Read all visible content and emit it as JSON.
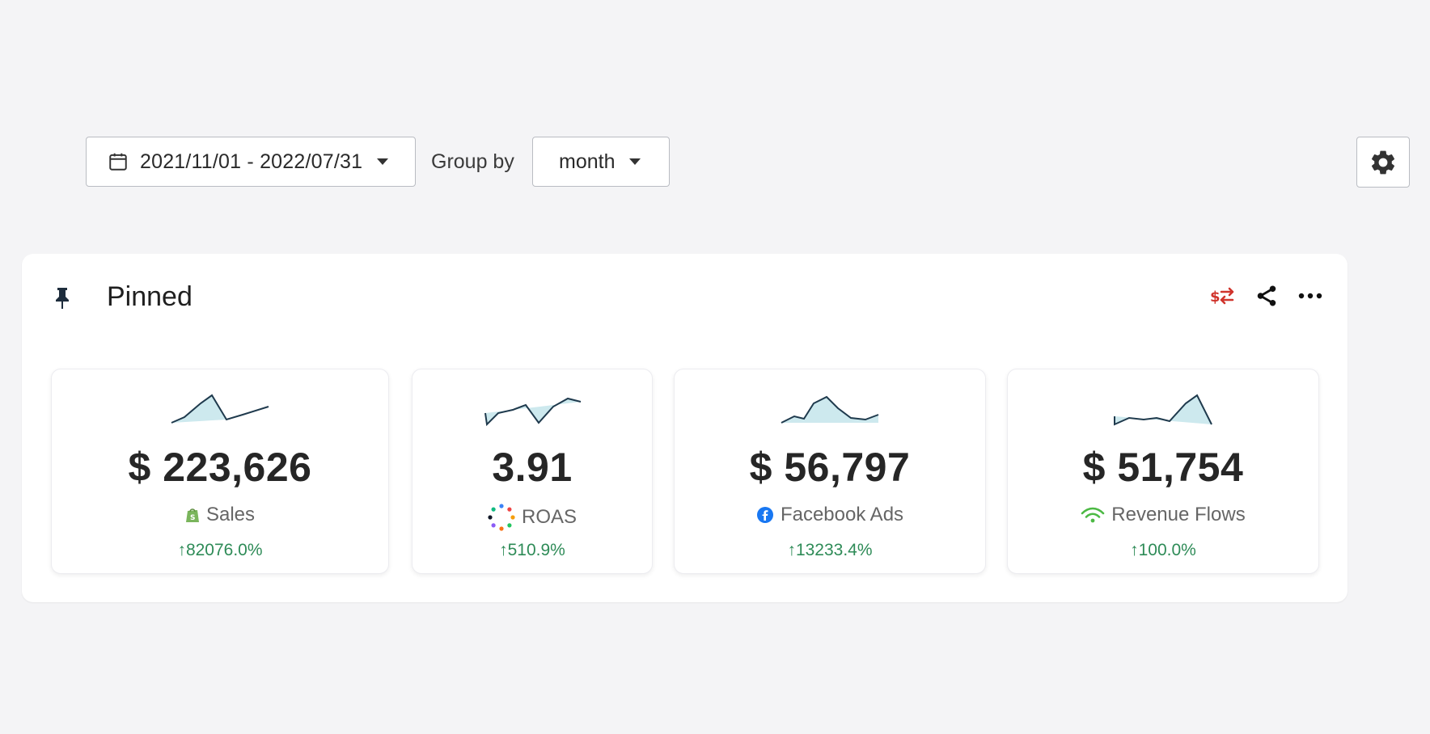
{
  "toolbar": {
    "date_range": "2021/11/01 - 2022/07/31",
    "group_by_label": "Group by",
    "group_by_value": "month"
  },
  "panel": {
    "title": "Pinned"
  },
  "cards": [
    {
      "value": "$ 223,626",
      "metric": "Sales",
      "change": "↑82076.0%",
      "icon": "shopify-icon"
    },
    {
      "value": "3.91",
      "metric": "ROAS",
      "change": "↑510.9%",
      "icon": "roas-dots-icon"
    },
    {
      "value": "$ 56,797",
      "metric": "Facebook Ads",
      "change": "↑13233.4%",
      "icon": "facebook-icon"
    },
    {
      "value": "$ 51,754",
      "metric": "Revenue Flows",
      "change": "↑100.0%",
      "icon": "wifi-icon"
    }
  ],
  "colors": {
    "positive": "#2e8b57",
    "spark_stroke": "#1f3a4d",
    "spark_fill": "#cde9ee",
    "accent_red": "#d0342c"
  }
}
